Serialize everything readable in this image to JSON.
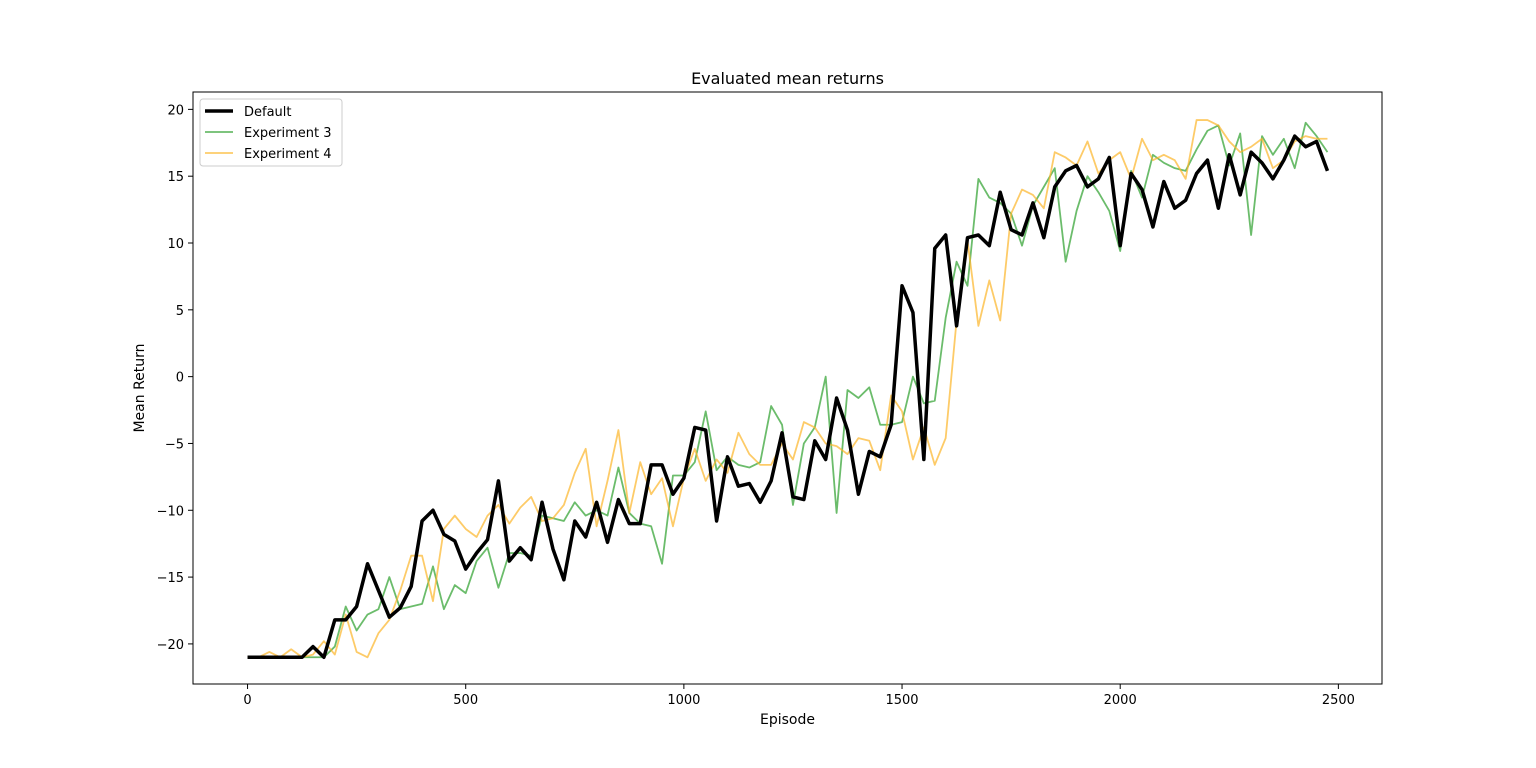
{
  "chart_data": {
    "type": "line",
    "title": "Evaluated mean returns",
    "xlabel": "Episode",
    "ylabel": "Mean Return",
    "xlim": [
      -125,
      2600
    ],
    "ylim": [
      -23.0,
      21.3
    ],
    "xticks": [
      0,
      500,
      1000,
      1500,
      2000,
      2500
    ],
    "yticks": [
      -20,
      -15,
      -10,
      -5,
      0,
      5,
      10,
      15,
      20
    ],
    "xtick_labels": [
      "0",
      "500",
      "1000",
      "1500",
      "2000",
      "2500"
    ],
    "ytick_labels": [
      "−20",
      "−15",
      "−10",
      "−5",
      "0",
      "5",
      "10",
      "15",
      "20"
    ],
    "grid": false,
    "legend_position": "upper left",
    "x": [
      0,
      25,
      50,
      75,
      100,
      125,
      150,
      175,
      200,
      225,
      250,
      275,
      300,
      325,
      350,
      375,
      400,
      425,
      450,
      475,
      500,
      525,
      550,
      575,
      600,
      625,
      650,
      675,
      700,
      725,
      750,
      775,
      800,
      825,
      850,
      875,
      900,
      925,
      950,
      975,
      1000,
      1025,
      1050,
      1075,
      1100,
      1125,
      1150,
      1175,
      1200,
      1225,
      1250,
      1275,
      1300,
      1325,
      1350,
      1375,
      1400,
      1425,
      1450,
      1475,
      1500,
      1525,
      1550,
      1575,
      1600,
      1625,
      1650,
      1675,
      1700,
      1725,
      1750,
      1775,
      1800,
      1825,
      1850,
      1875,
      1900,
      1925,
      1950,
      1975,
      2000,
      2025,
      2050,
      2075,
      2100,
      2125,
      2150,
      2175,
      2200,
      2225,
      2250,
      2275,
      2300,
      2325,
      2350,
      2375,
      2400,
      2425,
      2450,
      2475
    ],
    "series": [
      {
        "name": "Default",
        "color": "#000000",
        "values": [
          -21,
          -21,
          -21,
          -21,
          -21,
          -21,
          -20.2,
          -21,
          -18.2,
          -18.2,
          -17.2,
          -14,
          -16,
          -18,
          -17.3,
          -15.7,
          -10.8,
          -10,
          -11.8,
          -12.3,
          -14.4,
          -13.2,
          -12.2,
          -7.8,
          -13.8,
          -12.8,
          -13.7,
          -9.4,
          -12.9,
          -15.2,
          -10.8,
          -12,
          -9.4,
          -12.4,
          -9.2,
          -11,
          -11,
          -6.6,
          -6.6,
          -8.8,
          -7.6,
          -3.8,
          -4,
          -10.8,
          -6,
          -8.2,
          -8,
          -9.4,
          -7.8,
          -4.2,
          -9,
          -9.2,
          -4.8,
          -6.2,
          -1.6,
          -4,
          -8.8,
          -5.6,
          -6,
          -3.6,
          6.8,
          4.8,
          -6.2,
          9.6,
          10.6,
          3.8,
          10.4,
          10.6,
          9.8,
          13.8,
          11,
          10.6,
          13,
          10.4,
          14.2,
          15.4,
          15.8,
          14.2,
          14.8,
          16.4,
          9.8,
          15.2,
          14,
          11.2,
          14.6,
          12.6,
          13.2,
          15.2,
          16.2,
          12.6,
          16.6,
          13.6,
          16.8,
          16,
          14.8,
          16.2,
          18,
          17.2,
          17.6,
          15.4
        ]
      },
      {
        "name": "Experiment 3",
        "color": "#2ca02c",
        "values": [
          -21,
          -21,
          -21,
          -21,
          -21,
          -21,
          -21,
          -21,
          -20.2,
          -17.2,
          -19,
          -17.8,
          -17.4,
          -15,
          -17.4,
          -17.2,
          -17,
          -14.2,
          -17.4,
          -15.6,
          -16.2,
          -13.8,
          -12.8,
          -15.8,
          -13.2,
          -13.2,
          -13.4,
          -10.4,
          -10.6,
          -10.8,
          -9.4,
          -10.4,
          -10,
          -10.4,
          -6.8,
          -10.2,
          -11,
          -11.2,
          -14,
          -7.4,
          -7.4,
          -6.4,
          -2.6,
          -7,
          -6,
          -6.6,
          -6.8,
          -6.4,
          -2.2,
          -3.6,
          -9.6,
          -5,
          -3.8,
          0,
          -10.2,
          -1,
          -1.6,
          -0.8,
          -3.6,
          -3.6,
          -3.4,
          0,
          -2,
          -1.8,
          4.4,
          8.6,
          6.8,
          14.8,
          13.4,
          13,
          12.2,
          9.8,
          12.8,
          14.2,
          15.6,
          8.6,
          12.4,
          15,
          13.8,
          12.4,
          9.4,
          15.4,
          13.4,
          16.6,
          16,
          15.6,
          15.4,
          17,
          18.4,
          18.8,
          15.8,
          18.2,
          10.6,
          18,
          16.6,
          17.8,
          15.6,
          19,
          18,
          16.8
        ]
      },
      {
        "name": "Experiment 4",
        "color": "#fcb528",
        "values": [
          -21,
          -21,
          -20.6,
          -21,
          -20.4,
          -21,
          -20.8,
          -19.8,
          -20.8,
          -17.8,
          -20.6,
          -21,
          -19.2,
          -18.2,
          -16,
          -13.4,
          -13.4,
          -16.8,
          -11.4,
          -10.4,
          -11.4,
          -12,
          -10.4,
          -9.6,
          -11,
          -9.8,
          -9,
          -10.8,
          -10.6,
          -9.6,
          -7.2,
          -5.4,
          -11.2,
          -7.8,
          -4,
          -10.2,
          -6.4,
          -8.8,
          -7.6,
          -11.2,
          -7.6,
          -5.4,
          -7.8,
          -6.2,
          -7.2,
          -4.2,
          -5.8,
          -6.6,
          -6.6,
          -5,
          -6.2,
          -3.4,
          -3.8,
          -5,
          -5.2,
          -5.8,
          -4.6,
          -4.8,
          -7,
          -1.4,
          -2.6,
          -6.2,
          -3.8,
          -6.6,
          -4.6,
          4.2,
          10.2,
          3.8,
          7.2,
          4.2,
          12.2,
          14,
          13.6,
          12.6,
          16.8,
          16.4,
          15.8,
          17.6,
          15.2,
          16.2,
          16.8,
          14.8,
          17.8,
          16.2,
          16.6,
          16.2,
          14.8,
          19.2,
          19.2,
          18.8,
          17.6,
          16.8,
          17.2,
          17.8,
          15.6,
          16.2,
          17.6,
          18,
          17.8,
          17.8
        ]
      }
    ]
  }
}
